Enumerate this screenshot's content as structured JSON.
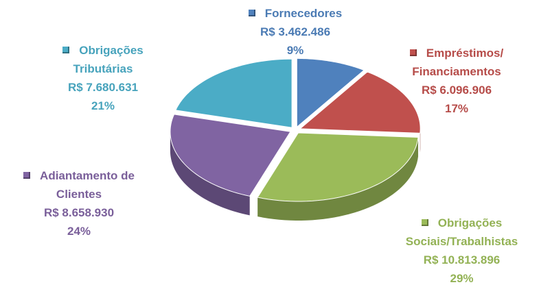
{
  "chart_data": {
    "type": "pie",
    "categories": [
      "Fornecedores",
      "Empréstimos/ Financiamentos",
      "Obrigações Sociais/Trabalhistas",
      "Adiantamento de Clientes",
      "Obrigações Tributárias"
    ],
    "values": [
      3462486,
      6096906,
      10813896,
      8658930,
      7680631
    ],
    "value_labels": [
      "R$ 3.462.486",
      "R$ 6.096.906",
      "R$ 10.813.896",
      "R$ 8.658.930",
      "R$ 7.680.631"
    ],
    "percent_labels": [
      "9%",
      "17%",
      "29%",
      "24%",
      "21%"
    ],
    "colors": [
      "#4f81bd",
      "#c0504d",
      "#9bbb59",
      "#8064a2",
      "#4bacc6"
    ]
  }
}
